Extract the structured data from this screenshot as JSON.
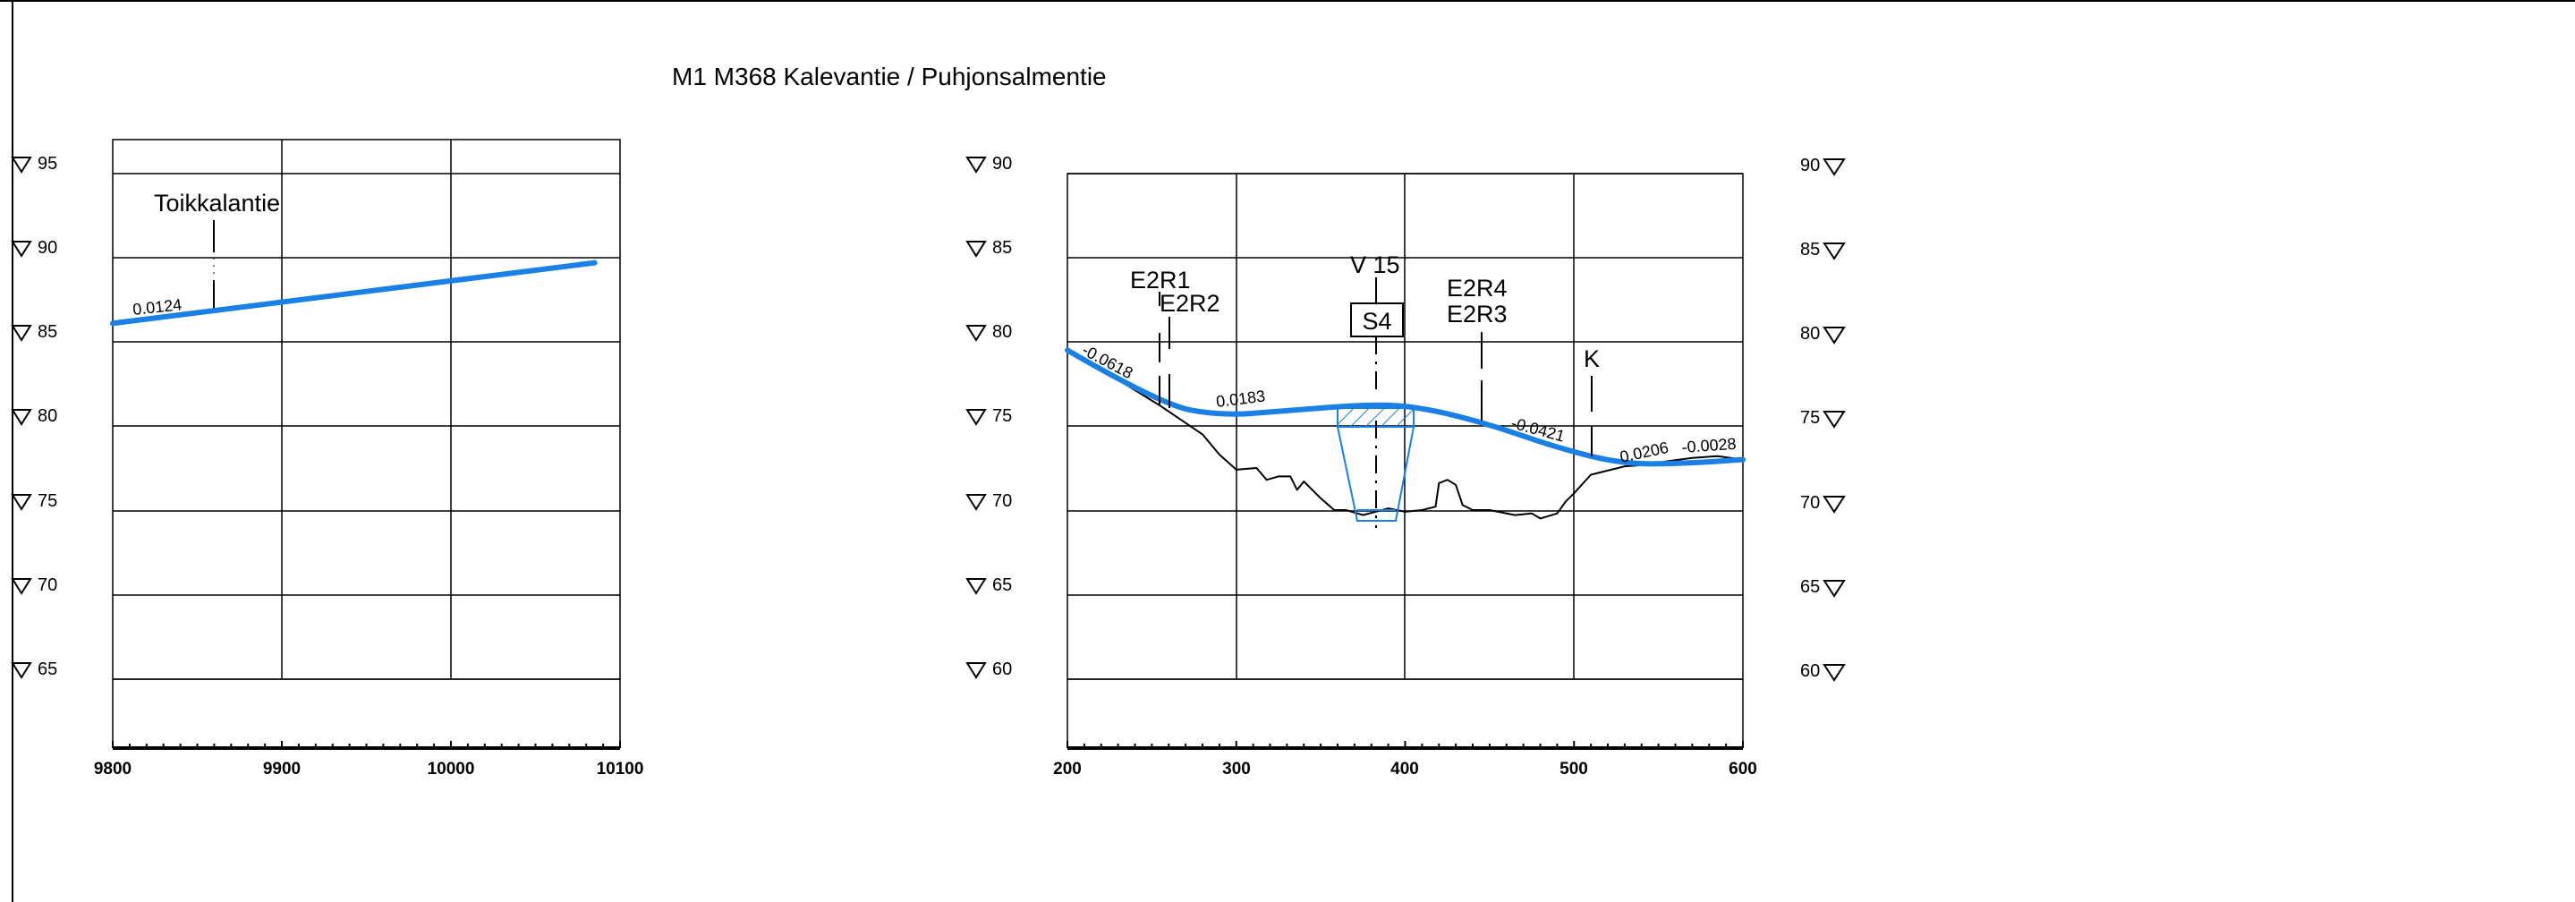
{
  "drawing": {
    "title": "M1 M368 Kalevantie / Puhjonsalmentie"
  },
  "colors": {
    "design_line": "#1a80e6",
    "ground_line": "#000000",
    "grid": "#000000",
    "background": "#ffffff"
  },
  "left_profile": {
    "stations": [
      "9800",
      "9900",
      "10000",
      "10100"
    ],
    "elevations": [
      "95",
      "90",
      "85",
      "80",
      "75",
      "70",
      "65"
    ],
    "road_label": "Toikkalantie",
    "slope_label": "0.0124",
    "design_line": {
      "from_station": 9800,
      "from_elevation": 86.1,
      "to_station": 10085,
      "to_elevation": 89.7
    }
  },
  "right_profile": {
    "stations": [
      "200",
      "300",
      "400",
      "500",
      "600"
    ],
    "elevations_left": [
      "90",
      "85",
      "80",
      "75",
      "70",
      "65",
      "60"
    ],
    "elevations_right": [
      "90",
      "85",
      "80",
      "75",
      "70",
      "65",
      "60"
    ],
    "labels": {
      "e2r1": "E2R1",
      "e2r2": "E2R2",
      "v15": "V 15",
      "s4": "S4",
      "e2r4": "E2R4",
      "e2r3": "E2R3",
      "k": "K"
    },
    "slopes": {
      "s1": "-0.0618",
      "s2": "0.0183",
      "s3": "-0.0421",
      "s4": "0.0206",
      "s5": "-0.0028"
    },
    "design_line": [
      [
        200,
        79.5
      ],
      [
        255,
        76.3
      ],
      [
        290,
        75.6
      ],
      [
        330,
        75.9
      ],
      [
        380,
        76.3
      ],
      [
        410,
        76.1
      ],
      [
        450,
        75.1
      ],
      [
        490,
        73.7
      ],
      [
        530,
        72.7
      ],
      [
        570,
        72.8
      ],
      [
        600,
        73.0
      ]
    ],
    "ground_line": [
      [
        200,
        79.6
      ],
      [
        255,
        76.2
      ],
      [
        280,
        74.5
      ],
      [
        290,
        73.3
      ],
      [
        300,
        72.4
      ],
      [
        312,
        72.5
      ],
      [
        318,
        71.8
      ],
      [
        325,
        72.0
      ],
      [
        332,
        72.0
      ],
      [
        336,
        71.2
      ],
      [
        340,
        71.7
      ],
      [
        344,
        71.3
      ],
      [
        350,
        70.7
      ],
      [
        358,
        70.0
      ],
      [
        365,
        70.0
      ],
      [
        375,
        69.7
      ],
      [
        390,
        70.1
      ],
      [
        400,
        69.9
      ],
      [
        410,
        70.0
      ],
      [
        418,
        70.2
      ],
      [
        420,
        71.6
      ],
      [
        425,
        71.8
      ],
      [
        430,
        71.5
      ],
      [
        434,
        70.3
      ],
      [
        440,
        70.0
      ],
      [
        450,
        70.0
      ],
      [
        465,
        69.7
      ],
      [
        475,
        69.8
      ],
      [
        480,
        69.5
      ],
      [
        490,
        69.8
      ],
      [
        495,
        70.5
      ],
      [
        500,
        71.0
      ],
      [
        510,
        72.1
      ],
      [
        530,
        72.6
      ],
      [
        545,
        72.7
      ],
      [
        555,
        72.9
      ],
      [
        570,
        73.1
      ],
      [
        585,
        73.2
      ],
      [
        600,
        73.0
      ]
    ]
  }
}
